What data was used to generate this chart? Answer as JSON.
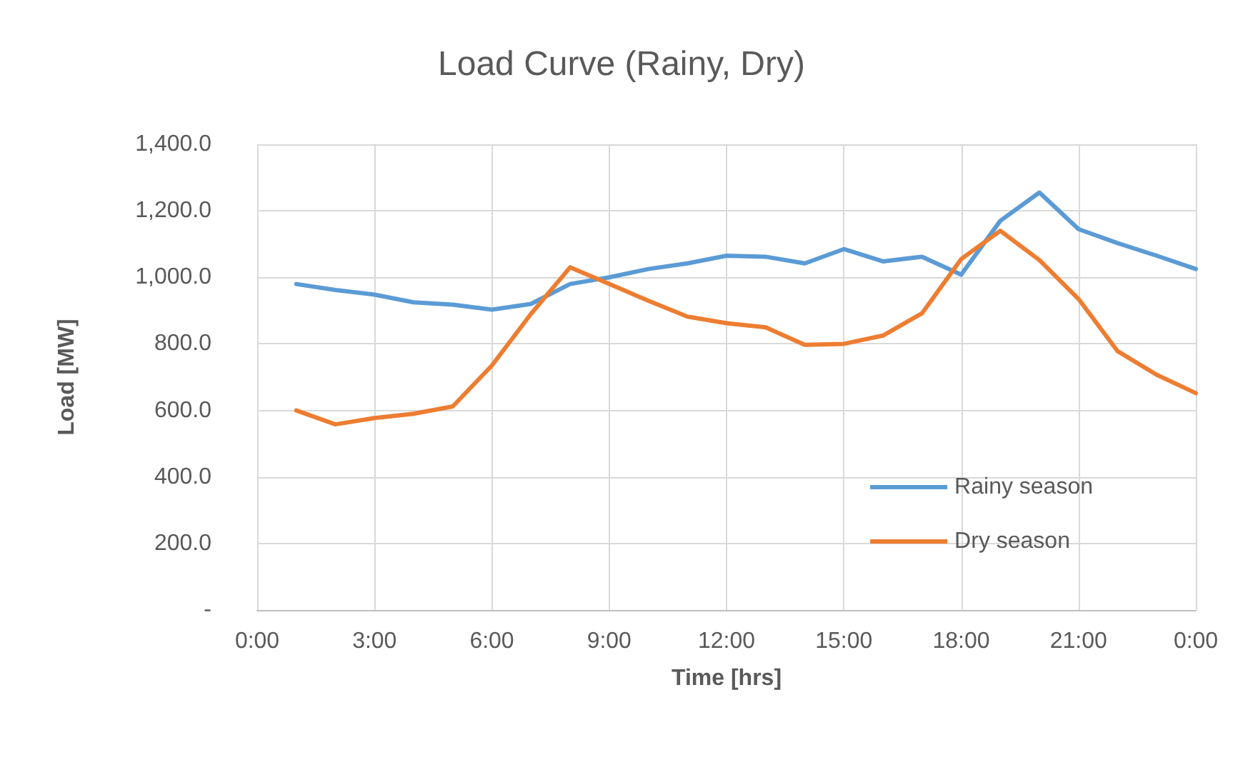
{
  "chart_data": {
    "type": "line",
    "title": "Load Curve (Rainy, Dry)",
    "xlabel": "Time [hrs]",
    "ylabel": "Load [MW]",
    "x": [
      1,
      2,
      3,
      4,
      5,
      6,
      7,
      8,
      9,
      10,
      11,
      12,
      13,
      14,
      15,
      16,
      17,
      18,
      19,
      20,
      21,
      22,
      23,
      24
    ],
    "series": [
      {
        "name": "Rainy season",
        "color": "#5b9bd5",
        "values": [
          980,
          962,
          948,
          925,
          918,
          903,
          920,
          980,
          1000,
          1025,
          1042,
          1065,
          1062,
          1042,
          1085,
          1048,
          1062,
          1008,
          1170,
          1255,
          1145,
          1103,
          1065,
          1025
        ]
      },
      {
        "name": "Dry season",
        "color": "#ed7d31",
        "values": [
          600,
          558,
          577,
          590,
          612,
          735,
          890,
          1030,
          980,
          930,
          882,
          862,
          850,
          797,
          800,
          825,
          892,
          1055,
          1140,
          1052,
          935,
          778,
          707,
          652
        ]
      }
    ],
    "xlim": [
      0,
      24
    ],
    "xticks": [
      {
        "value": 0,
        "label": "0:00"
      },
      {
        "value": 3,
        "label": "3:00"
      },
      {
        "value": 6,
        "label": "6:00"
      },
      {
        "value": 9,
        "label": "9:00"
      },
      {
        "value": 12,
        "label": "12:00"
      },
      {
        "value": 15,
        "label": "15:00"
      },
      {
        "value": 18,
        "label": "18:00"
      },
      {
        "value": 21,
        "label": "21:00"
      },
      {
        "value": 24,
        "label": "0:00"
      }
    ],
    "ylim": [
      0,
      1400
    ],
    "yticks": [
      {
        "value": 0,
        "label": "-"
      },
      {
        "value": 200,
        "label": "200.0"
      },
      {
        "value": 400,
        "label": "400.0"
      },
      {
        "value": 600,
        "label": "600.0"
      },
      {
        "value": 800,
        "label": "800.0"
      },
      {
        "value": 1000,
        "label": "1,000.0"
      },
      {
        "value": 1200,
        "label": "1,200.0"
      },
      {
        "value": 1400,
        "label": "1,400.0"
      }
    ],
    "grid": true,
    "legend": "bottom right",
    "marker": "none",
    "line_style": "solid"
  }
}
